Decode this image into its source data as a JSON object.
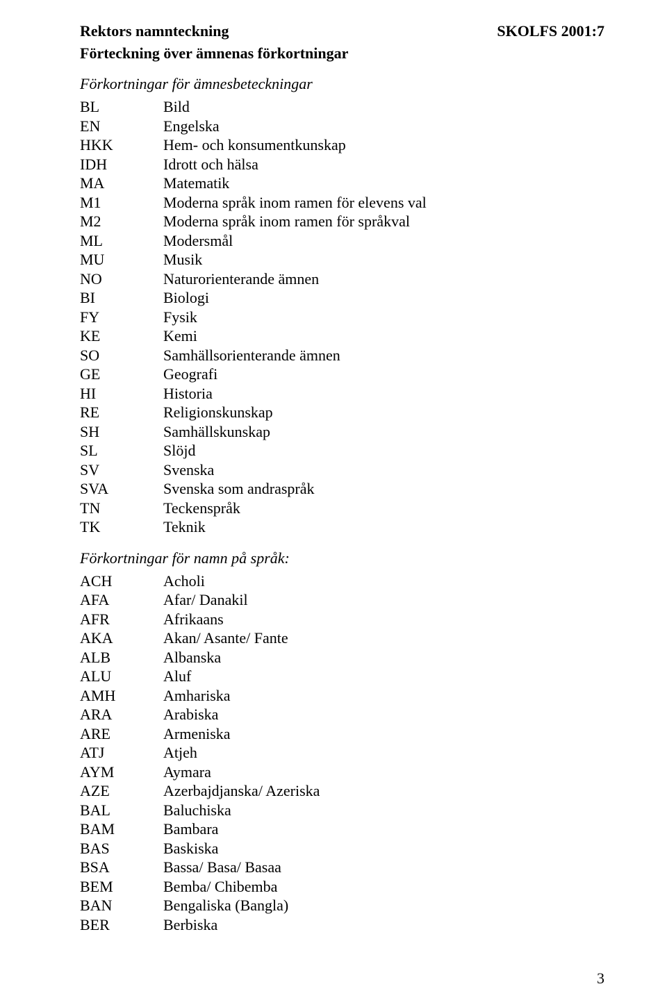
{
  "header": {
    "left": "Rektors namnteckning",
    "right": "SKOLFS 2001:7",
    "sub": "Förteckning över ämnenas förkortningar"
  },
  "section1": {
    "title": "Förkortningar för ämnesbeteckningar",
    "rows": [
      {
        "code": "BL",
        "label": "Bild"
      },
      {
        "code": "EN",
        "label": "Engelska"
      },
      {
        "code": "HKK",
        "label": "Hem- och konsumentkunskap"
      },
      {
        "code": "IDH",
        "label": "Idrott och hälsa"
      },
      {
        "code": "MA",
        "label": "Matematik"
      },
      {
        "code": "M1",
        "label": "Moderna språk inom ramen för elevens val"
      },
      {
        "code": "M2",
        "label": "Moderna språk inom ramen för språkval"
      },
      {
        "code": "ML",
        "label": "Modersmål"
      },
      {
        "code": "MU",
        "label": "Musik"
      },
      {
        "code": "NO",
        "label": "Naturorienterande ämnen"
      },
      {
        "code": "BI",
        "label": "Biologi"
      },
      {
        "code": "FY",
        "label": "Fysik"
      },
      {
        "code": "KE",
        "label": "Kemi"
      },
      {
        "code": "SO",
        "label": "Samhällsorienterande ämnen"
      },
      {
        "code": "GE",
        "label": "Geografi"
      },
      {
        "code": "HI",
        "label": "Historia"
      },
      {
        "code": "RE",
        "label": "Religionskunskap"
      },
      {
        "code": "SH",
        "label": "Samhällskunskap"
      },
      {
        "code": "SL",
        "label": "Slöjd"
      },
      {
        "code": "SV",
        "label": "Svenska"
      },
      {
        "code": "SVA",
        "label": "Svenska som andraspråk"
      },
      {
        "code": "TN",
        "label": "Teckenspråk"
      },
      {
        "code": "TK",
        "label": "Teknik"
      }
    ]
  },
  "section2": {
    "title": "Förkortningar för namn på språk:",
    "rows": [
      {
        "code": "ACH",
        "label": "Acholi"
      },
      {
        "code": "AFA",
        "label": "Afar/ Danakil"
      },
      {
        "code": "AFR",
        "label": "Afrikaans"
      },
      {
        "code": "AKA",
        "label": "Akan/ Asante/ Fante"
      },
      {
        "code": "ALB",
        "label": "Albanska"
      },
      {
        "code": "ALU",
        "label": "Aluf"
      },
      {
        "code": "AMH",
        "label": "Amhariska"
      },
      {
        "code": "ARA",
        "label": "Arabiska"
      },
      {
        "code": "ARE",
        "label": "Armeniska"
      },
      {
        "code": "ATJ",
        "label": "Atjeh"
      },
      {
        "code": "AYM",
        "label": "Aymara"
      },
      {
        "code": "AZE",
        "label": "Azerbajdjanska/ Azeriska"
      },
      {
        "code": "BAL",
        "label": "Baluchiska"
      },
      {
        "code": "BAM",
        "label": "Bambara"
      },
      {
        "code": "BAS",
        "label": "Baskiska"
      },
      {
        "code": "BSA",
        "label": "Bassa/ Basa/ Basaa"
      },
      {
        "code": "BEM",
        "label": "Bemba/ Chibemba"
      },
      {
        "code": "BAN",
        "label": "Bengaliska (Bangla)"
      },
      {
        "code": "BER",
        "label": "Berbiska"
      }
    ]
  },
  "page_number": "3"
}
